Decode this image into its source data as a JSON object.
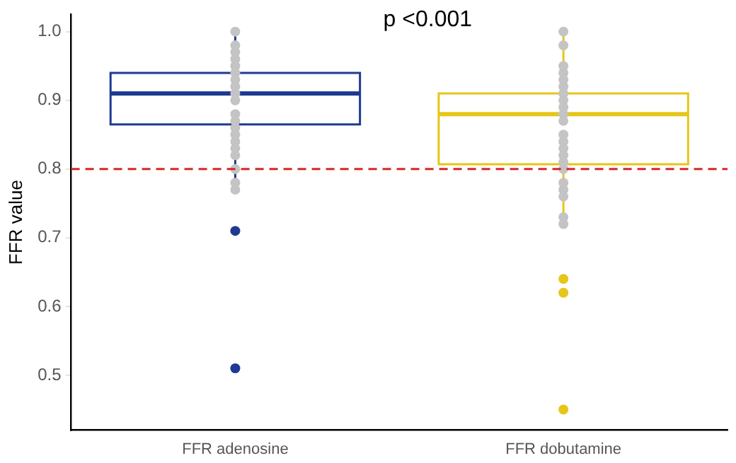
{
  "chart_data": {
    "type": "box",
    "ylabel": "FFR value",
    "categories": [
      "FFR adenosine",
      "FFR dobutamine"
    ],
    "boxes": [
      {
        "low": 0.77,
        "q1": 0.865,
        "median": 0.91,
        "q3": 0.94,
        "high": 1.0,
        "outliers": [
          0.71,
          0.51
        ]
      },
      {
        "low": 0.72,
        "q1": 0.807,
        "median": 0.88,
        "q3": 0.91,
        "high": 1.0,
        "outliers": [
          0.64,
          0.62,
          0.45
        ]
      }
    ],
    "colors": [
      "#1f3a93",
      "#e6c619"
    ],
    "series": [
      {
        "type": "scatter",
        "color": "#c4c4c4",
        "x": [
          "FFR adenosine",
          "FFR adenosine",
          "FFR adenosine",
          "FFR adenosine",
          "FFR adenosine",
          "FFR adenosine",
          "FFR adenosine",
          "FFR adenosine",
          "FFR adenosine",
          "FFR adenosine",
          "FFR adenosine",
          "FFR adenosine",
          "FFR adenosine",
          "FFR adenosine",
          "FFR adenosine",
          "FFR adenosine",
          "FFR adenosine",
          "FFR adenosine",
          "FFR adenosine",
          "FFR adenosine",
          "FFR dobutamine",
          "FFR dobutamine",
          "FFR dobutamine",
          "FFR dobutamine",
          "FFR dobutamine",
          "FFR dobutamine",
          "FFR dobutamine",
          "FFR dobutamine",
          "FFR dobutamine",
          "FFR dobutamine",
          "FFR dobutamine",
          "FFR dobutamine",
          "FFR dobutamine",
          "FFR dobutamine",
          "FFR dobutamine",
          "FFR dobutamine",
          "FFR dobutamine",
          "FFR dobutamine",
          "FFR dobutamine",
          "FFR dobutamine",
          "FFR dobutamine",
          "FFR dobutamine"
        ],
        "values": [
          1.0,
          0.98,
          0.97,
          0.96,
          0.95,
          0.94,
          0.93,
          0.92,
          0.91,
          0.9,
          0.88,
          0.87,
          0.86,
          0.85,
          0.84,
          0.83,
          0.82,
          0.8,
          0.78,
          0.77,
          1.0,
          0.98,
          0.95,
          0.94,
          0.93,
          0.92,
          0.91,
          0.9,
          0.89,
          0.88,
          0.87,
          0.85,
          0.84,
          0.83,
          0.82,
          0.81,
          0.8,
          0.78,
          0.77,
          0.76,
          0.73,
          0.72
        ]
      }
    ],
    "ref_lines": [
      {
        "axis": "y",
        "value": 0.8,
        "color": "#d62728",
        "line_style": "dashed"
      }
    ],
    "annotations": [
      "p <0.001"
    ],
    "ylim": [
      0.42,
      1.025
    ],
    "yticks": [
      {
        "value": 0.5,
        "label": "0.5"
      },
      {
        "value": 0.6,
        "label": "0.6"
      },
      {
        "value": 0.7,
        "label": "0.7"
      },
      {
        "value": 0.8,
        "label": "0.8"
      },
      {
        "value": 0.9,
        "label": "0.9"
      },
      {
        "value": 1.0,
        "label": "1.0"
      }
    ],
    "grid": false,
    "legend": false,
    "marker": "circle"
  }
}
